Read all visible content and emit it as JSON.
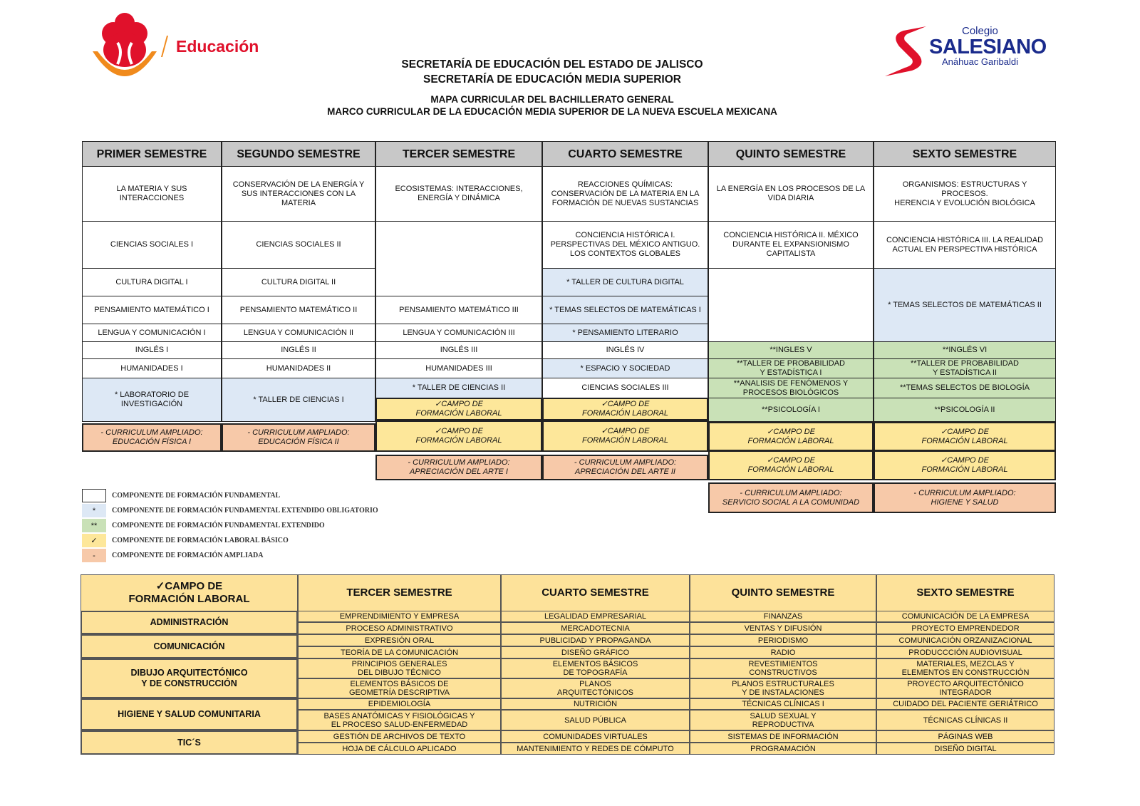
{
  "header": {
    "logo_left_text": "Educación",
    "logo_right": {
      "line1": "Colegio",
      "line2": "SALESIANO",
      "line3": "Anáhuac Garibaldi"
    },
    "title1": "SECRETARÍA DE EDUCACIÓN DEL ESTADO DE JALISCO",
    "title2": "SECRETARÍA DE EDUCACIÓN MEDIA SUPERIOR",
    "subtitle1": "MAPA CURRICULAR DEL BACHILLERATO GENERAL",
    "subtitle2": "MARCO CURRICULAR DE LA EDUCACIÓN MEDIA SUPERIOR DE LA NUEVA ESCUELA MEXICANA"
  },
  "colors": {
    "fundamental": "#ffffff",
    "fundamental_extendido_obligatorio": "#dde8f5",
    "fundamental_extendido": "#c9e1b7",
    "laboral": "#fde79a",
    "ampliado": "#f7c9a9",
    "header": "#c8c8c8",
    "brand_red": "#e0112b",
    "brand_orange": "#f08a1c",
    "salesiano_blue": "#1a2b8c"
  },
  "semesters": [
    {
      "header": "PRIMER SEMESTRE",
      "cells": [
        {
          "text": "LA MATERIA Y SUS\nINTERACCIONES",
          "type": "f"
        },
        {
          "text": "CIENCIAS SOCIALES I",
          "type": "f"
        },
        {
          "text": "CULTURA DIGITAL I",
          "type": "f"
        },
        {
          "text": "PENSAMIENTO MATEMÁTICO I",
          "type": "f"
        },
        {
          "text": "LENGUA Y COMUNICACIÓN I",
          "type": "f"
        },
        {
          "text": "INGLÉS I",
          "type": "f"
        },
        {
          "text": "HUMANIDADES I",
          "type": "f"
        },
        {
          "text": "* LABORATORIO DE\nINVESTIGACIÓN",
          "type": "fo"
        },
        {
          "text": "- CURRICULUM AMPLIADO:\nEDUCACIÓN FÍSICA I",
          "type": "a"
        }
      ]
    },
    {
      "header": "SEGUNDO SEMESTRE",
      "cells": [
        {
          "text": "CONSERVACIÓN DE LA ENERGÍA Y\nSUS INTERACCIONES CON LA\nMATERIA",
          "type": "f"
        },
        {
          "text": "CIENCIAS SOCIALES II",
          "type": "f"
        },
        {
          "text": "CULTURA     DIGITAL II",
          "type": "f"
        },
        {
          "text": "PENSAMIENTO MATEMÁTICO II",
          "type": "f"
        },
        {
          "text": "LENGUA Y COMUNICACIÓN II",
          "type": "f"
        },
        {
          "text": "INGLÉS II",
          "type": "f"
        },
        {
          "text": "HUMANIDADES II",
          "type": "f"
        },
        {
          "text": "* TALLER DE CIENCIAS I",
          "type": "fo"
        },
        {
          "text": "- CURRICULUM AMPLIADO:\nEDUCACIÓN FÍSICA II",
          "type": "a"
        }
      ]
    },
    {
      "header": "TERCER SEMESTRE",
      "cells": [
        {
          "text": "ECOSISTEMAS: INTERACCIONES,\nENERGÍA Y DINÁMICA",
          "type": "f"
        },
        {
          "text": "",
          "type": "f"
        },
        {
          "text": "PENSAMIENTO MATEMÁTICO III",
          "type": "f"
        },
        {
          "text": "LENGUA Y COMUNICACIÓN III",
          "type": "f"
        },
        {
          "text": "INGLÉS III",
          "type": "f"
        },
        {
          "text": "HUMANIDADES III",
          "type": "f"
        },
        {
          "text": "* TALLER DE CIENCIAS II",
          "type": "fo"
        },
        {
          "text": "✓CAMPO DE\nFORMACIÓN LABORAL",
          "type": "l"
        },
        {
          "text": "✓CAMPO DE\nFORMACIÓN LABORAL",
          "type": "l"
        },
        {
          "text": "- CURRICULUM AMPLIADO:\nAPRECIACIÓN DEL ARTE I",
          "type": "a"
        }
      ]
    },
    {
      "header": "CUARTO SEMESTRE",
      "cells": [
        {
          "text": "REACCIONES QUÍMICAS:\nCONSERVACIÓN DE LA MATERIA EN LA\nFORMACIÓN DE NUEVAS SUSTANCIAS",
          "type": "f"
        },
        {
          "text": "CONCIENCIA HISTÓRICA I.\nPERSPECTIVAS DEL MÉXICO ANTIGUO.\nLOS CONTEXTOS GLOBALES",
          "type": "f"
        },
        {
          "text": "* TALLER DE CULTURA DIGITAL",
          "type": "fo"
        },
        {
          "text": "* TEMAS SELECTOS DE MATEMÁTICAS I",
          "type": "fo"
        },
        {
          "text": "* PENSAMIENTO LITERARIO",
          "type": "fo"
        },
        {
          "text": "INGLÉS IV",
          "type": "f"
        },
        {
          "text": "* ESPACIO Y SOCIEDAD",
          "type": "fo"
        },
        {
          "text": "CIENCIAS SOCIALES III",
          "type": "f"
        },
        {
          "text": "✓CAMPO DE\nFORMACIÓN LABORAL",
          "type": "l"
        },
        {
          "text": "✓CAMPO DE\nFORMACIÓN LABORAL",
          "type": "l"
        },
        {
          "text": "- CURRICULUM AMPLIADO:\nAPRECIACIÓN DEL ARTE II",
          "type": "a"
        }
      ]
    },
    {
      "header": "QUINTO SEMESTRE",
      "cells": [
        {
          "text": "LA ENERGÍA EN LOS PROCESOS DE LA\nVIDA DIARIA",
          "type": "f"
        },
        {
          "text": "CONCIENCIA HISTÓRICA II. MÉXICO\nDURANTE EL EXPANSIONISMO\nCAPITALISTA",
          "type": "f"
        },
        {
          "text": "",
          "type": "f"
        },
        {
          "text": "**INGLES V",
          "type": "fe"
        },
        {
          "text": "**TALLER DE PROBABILIDAD\nY ESTADÍSTICA I",
          "type": "fe"
        },
        {
          "text": "**ANALISIS DE FENÓMENOS Y\nPROCESOS BIOLÓGICOS",
          "type": "fe"
        },
        {
          "text": "**PSICOLOGÍA I",
          "type": "fe"
        },
        {
          "text": "✓CAMPO DE\nFORMACIÓN LABORAL",
          "type": "l"
        },
        {
          "text": "✓CAMPO DE\nFORMACIÓN LABORAL",
          "type": "l"
        },
        {
          "text": "- CURRICULUM AMPLIADO:\nSERVICIO SOCIAL A LA COMUNIDAD",
          "type": "a"
        }
      ]
    },
    {
      "header": "SEXTO SEMESTRE",
      "cells": [
        {
          "text": "ORGANISMOS: ESTRUCTURAS Y PROCESOS.\nHERENCIA Y EVOLUCIÓN BIOLÓGICA",
          "type": "f"
        },
        {
          "text": "CONCIENCIA HISTÓRICA III. LA REALIDAD\nACTUAL EN PERSPECTIVA HISTÓRICA",
          "type": "f"
        },
        {
          "text": "* TEMAS SELECTOS DE MATEMÁTICAS II",
          "type": "fo"
        },
        {
          "text": "**INGLÉS VI",
          "type": "fe"
        },
        {
          "text": "**TALLER DE PROBABILIDAD\nY ESTADÍSTICA II",
          "type": "fe"
        },
        {
          "text": "**TEMAS SELECTOS DE BIOLOGÍA",
          "type": "fe"
        },
        {
          "text": "**PSICOLOGÍA II",
          "type": "fe"
        },
        {
          "text": "✓CAMPO DE\nFORMACIÓN LABORAL",
          "type": "l"
        },
        {
          "text": "✓CAMPO DE\nFORMACIÓN LABORAL",
          "type": "l"
        },
        {
          "text": "- CURRICULUM AMPLIADO:\nHIGIENE Y SALUD",
          "type": "a"
        }
      ]
    }
  ],
  "legend": [
    {
      "symbol": "",
      "type": "f",
      "label": "COMPONENTE DE FORMACIÓN FUNDAMENTAL"
    },
    {
      "symbol": "*",
      "type": "fo",
      "label": "COMPONENTE DE FORMACIÓN FUNDAMENTAL EXTENDIDO OBLIGATORIO"
    },
    {
      "symbol": "**",
      "type": "fe",
      "label": "COMPONENTE DE FORMACIÓN FUNDAMENTAL EXTENDIDO"
    },
    {
      "symbol": "✓",
      "type": "l",
      "label": "COMPONENTE DE FORMACIÓN LABORAL BÁSICO"
    },
    {
      "symbol": "-",
      "type": "a",
      "label": "COMPONENTE DE FORMACIÓN AMPLIADA"
    }
  ],
  "laboral": {
    "corner": "✓CAMPO DE\nFORMACIÓN LABORAL",
    "headers": [
      "TERCER SEMESTRE",
      "CUARTO SEMESTRE",
      "QUINTO SEMESTRE",
      "SEXTO SEMESTRE"
    ],
    "groups": [
      {
        "name": "ADMINISTRACIÓN",
        "rows": [
          [
            "EMPRENDIMIENTO Y EMPRESA",
            "LEGALIDAD EMPRESARIAL",
            "FINANZAS",
            "COMUNICACIÓN DE LA EMPRESA"
          ],
          [
            "PROCESO ADMINISTRATIVO",
            "MERCADOTECNIA",
            "VENTAS Y DIFUSIÓN",
            "PROYECTO EMPRENDEDOR"
          ]
        ]
      },
      {
        "name": "COMUNICACIÓN",
        "rows": [
          [
            "EXPRESIÓN ORAL",
            "PUBLICIDAD Y PROPAGANDA",
            "PERIODISMO",
            "COMUNICACIÓN ORZANIZACIONAL"
          ],
          [
            "TEORÍA DE LA COMUNICACIÓN",
            "DISEÑO GRÁFICO",
            "RADIO",
            "PRODUCCCIÓN AUDIOVISUAL"
          ]
        ]
      },
      {
        "name": "DIBUJO ARQUITECTÓNICO\nY DE CONSTRUCCIÓN",
        "rows": [
          [
            "PRINCIPIOS GENERALES\nDEL DIBUJO TÉCNICO",
            "ELEMENTOS BÁSICOS\nDE TOPOGRAFÍA",
            "REVESTIMIENTOS\nCONSTRUCTIVOS",
            "MATERIALES, MEZCLAS Y\nELEMENTOS EN CONSTRUCCIÓN"
          ],
          [
            "ELEMENTOS BÁSICOS DE\nGEOMETRÍA DESCRIPTIVA",
            "PLANOS\nARQUITECTÓNICOS",
            "PLANOS ESTRUCTURALES\nY DE INSTALACIONES",
            "PROYECTO ARQUITECTÓNICO\nINTEGRADOR"
          ]
        ]
      },
      {
        "name": "HIGIENE Y SALUD COMUNITARIA",
        "rows": [
          [
            "EPIDEMIOLOGÍA",
            "NUTRICIÓN",
            "TÉCNICAS CLÍNICAS I",
            "CUIDADO DEL PACIENTE GERIÁTRICO"
          ],
          [
            "BASES ANATÓMICAS Y FISIOLÓGICAS Y\nEL PROCESO SALUD-ENFERMEDAD",
            "SALUD PÚBLICA",
            "SALUD SEXUAL Y\nREPRODUCTIVA",
            "TÉCNICAS CLÍNICAS II"
          ]
        ]
      },
      {
        "name": "TIC´S",
        "rows": [
          [
            "GESTIÓN DE ARCHIVOS DE TEXTO",
            "COMUNIDADES VIRTUALES",
            "SISTEMAS DE INFORMACIÓN",
            "PÁGINAS WEB"
          ],
          [
            "HOJA DE CÁLCULO APLICADO",
            "MANTENIMIENTO Y REDES DE CÓMPUTO",
            "PROGRAMACIÓN",
            "DISEÑO DIGITAL"
          ]
        ]
      }
    ]
  }
}
